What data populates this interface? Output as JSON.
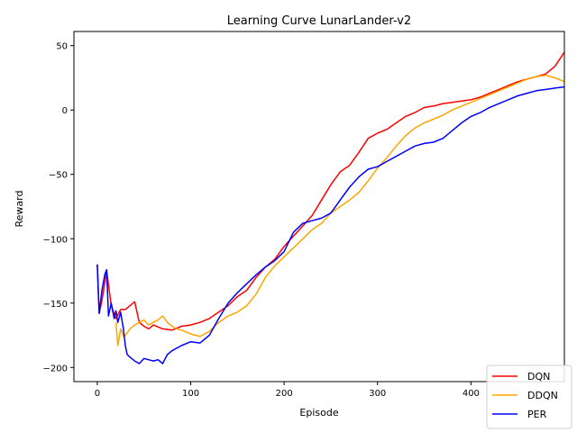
{
  "chart_data": {
    "type": "line",
    "title": "Learning Curve LunarLander-v2",
    "xlabel": "Episode",
    "ylabel": "Reward",
    "xlim": [
      -25,
      500
    ],
    "ylim": [
      -211,
      61
    ],
    "xticks": [
      0,
      100,
      200,
      300,
      400
    ],
    "yticks": [
      -200,
      -150,
      -100,
      -50,
      0,
      50
    ],
    "grid": false,
    "legend_position": "bottom-right",
    "series": [
      {
        "name": "DQN",
        "color": "#ff0000",
        "x": [
          0,
          2,
          5,
          10,
          15,
          20,
          25,
          30,
          35,
          40,
          45,
          50,
          55,
          60,
          70,
          80,
          90,
          100,
          110,
          120,
          130,
          140,
          150,
          160,
          170,
          180,
          190,
          200,
          210,
          220,
          230,
          240,
          250,
          260,
          270,
          280,
          290,
          300,
          310,
          320,
          330,
          340,
          350,
          360,
          370,
          380,
          390,
          400,
          410,
          420,
          430,
          440,
          450,
          460,
          470,
          480,
          490,
          500
        ],
        "y": [
          -120,
          -158,
          -148,
          -125,
          -152,
          -162,
          -155,
          -155,
          -152,
          -149,
          -165,
          -168,
          -170,
          -167,
          -170,
          -171,
          -168,
          -167,
          -165,
          -162,
          -157,
          -152,
          -145,
          -140,
          -130,
          -122,
          -116,
          -106,
          -98,
          -90,
          -82,
          -70,
          -58,
          -48,
          -43,
          -33,
          -22,
          -18,
          -15,
          -10,
          -5,
          -2,
          2,
          3,
          5,
          6,
          7,
          8,
          10,
          13,
          16,
          19,
          22,
          24,
          26,
          28,
          34,
          45
        ]
      },
      {
        "name": "DDQN",
        "color": "#ffa500",
        "x": [
          20,
          22,
          25,
          28,
          30,
          35,
          40,
          45,
          50,
          55,
          60,
          65,
          70,
          75,
          80,
          85,
          90,
          100,
          110,
          120,
          130,
          140,
          150,
          160,
          170,
          180,
          190,
          200,
          210,
          220,
          230,
          240,
          250,
          260,
          270,
          280,
          290,
          300,
          310,
          320,
          330,
          340,
          350,
          360,
          370,
          380,
          390,
          400,
          410,
          420,
          430,
          440,
          450,
          460,
          470,
          480,
          490,
          500
        ],
        "y": [
          -165,
          -183,
          -170,
          -176,
          -175,
          -170,
          -167,
          -165,
          -163,
          -167,
          -165,
          -163,
          -160,
          -165,
          -168,
          -170,
          -171,
          -174,
          -176,
          -172,
          -165,
          -160,
          -157,
          -152,
          -143,
          -130,
          -121,
          -114,
          -107,
          -100,
          -93,
          -88,
          -80,
          -75,
          -70,
          -64,
          -55,
          -45,
          -37,
          -28,
          -20,
          -14,
          -10,
          -7,
          -4,
          0,
          3,
          6,
          9,
          12,
          15,
          18,
          21,
          24,
          26,
          27,
          25,
          22
        ]
      },
      {
        "name": "PER",
        "color": "#0000ff",
        "x": [
          0,
          2,
          5,
          8,
          10,
          12,
          15,
          18,
          20,
          22,
          25,
          28,
          30,
          32,
          35,
          40,
          45,
          50,
          55,
          60,
          65,
          70,
          75,
          80,
          90,
          100,
          110,
          120,
          130,
          140,
          150,
          160,
          170,
          180,
          190,
          200,
          210,
          220,
          230,
          240,
          250,
          260,
          270,
          280,
          290,
          300,
          310,
          320,
          330,
          340,
          350,
          360,
          370,
          380,
          390,
          400,
          410,
          420,
          430,
          440,
          450,
          460,
          470,
          480,
          490,
          500
        ],
        "y": [
          -120,
          -158,
          -140,
          -128,
          -124,
          -160,
          -150,
          -162,
          -156,
          -165,
          -157,
          -170,
          -183,
          -190,
          -192,
          -195,
          -197,
          -193,
          -194,
          -195,
          -194,
          -197,
          -190,
          -187,
          -183,
          -180,
          -181,
          -175,
          -162,
          -150,
          -142,
          -135,
          -128,
          -122,
          -117,
          -110,
          -95,
          -88,
          -86,
          -84,
          -80,
          -70,
          -60,
          -52,
          -46,
          -44,
          -40,
          -36,
          -32,
          -28,
          -26,
          -25,
          -22,
          -16,
          -10,
          -5,
          -2,
          2,
          5,
          8,
          11,
          13,
          15,
          16,
          17,
          18
        ]
      }
    ]
  }
}
